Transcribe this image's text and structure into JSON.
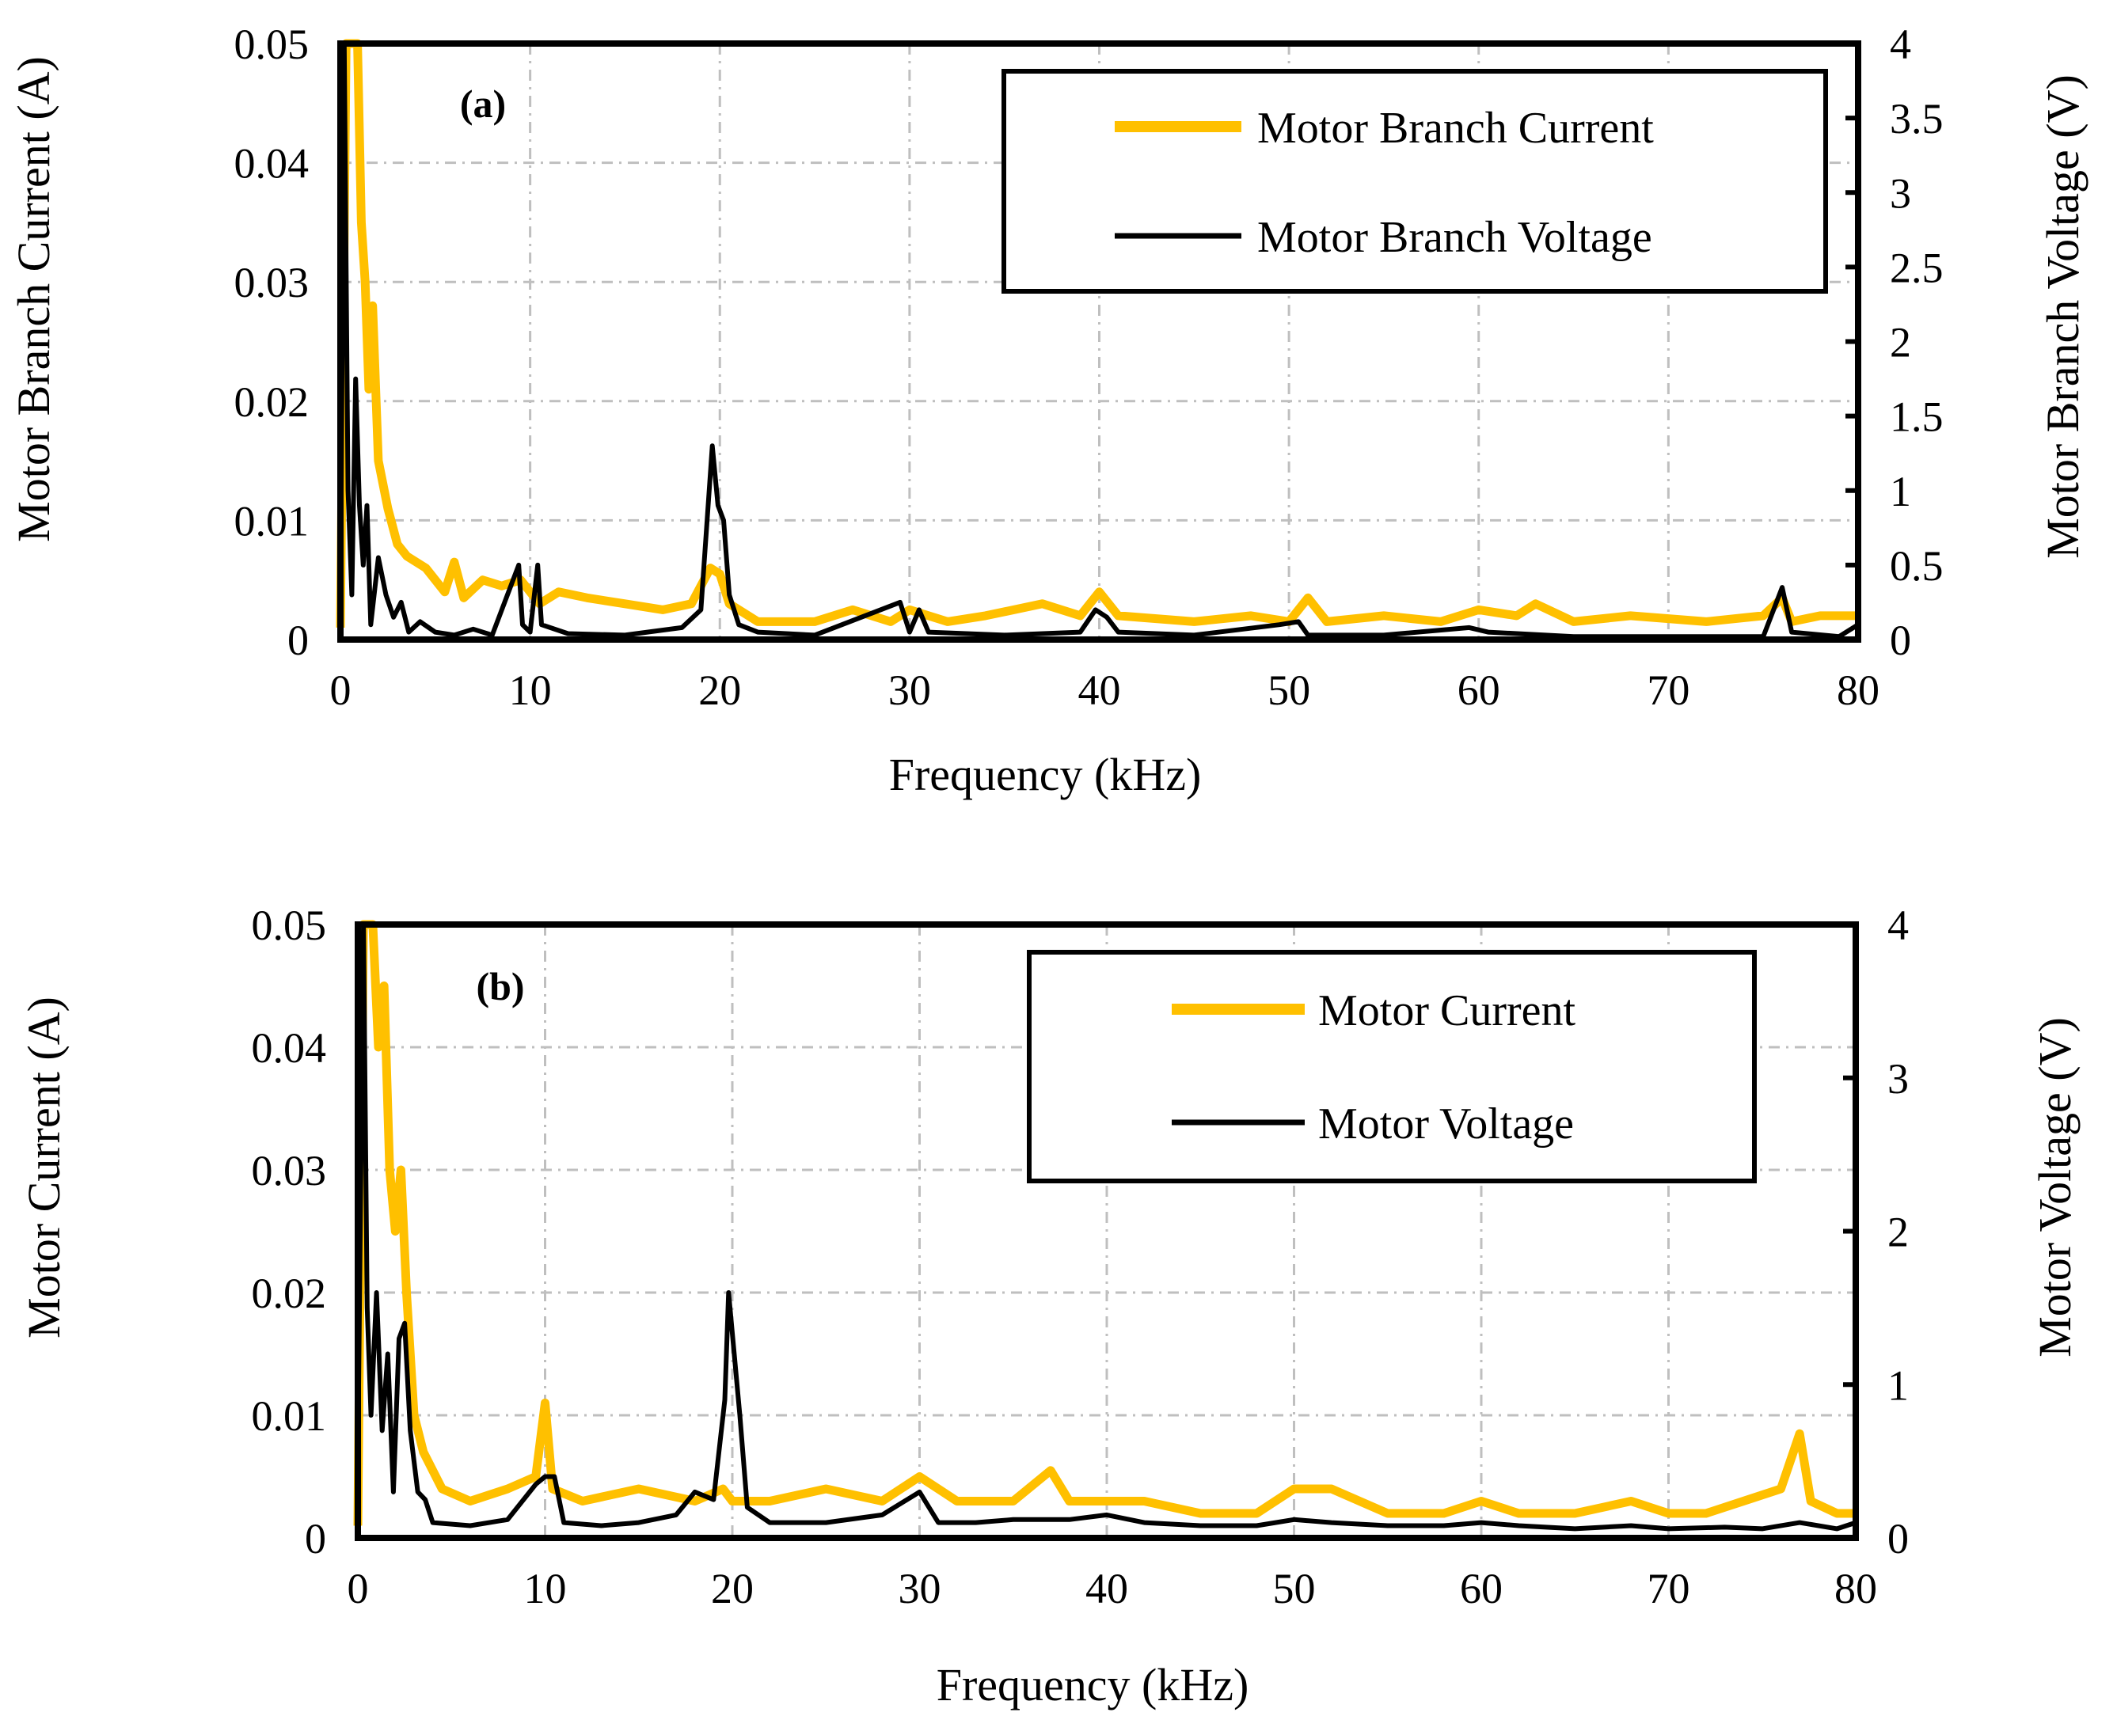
{
  "chart_data": [
    {
      "id": "a",
      "type": "line",
      "panel_label": "(a)",
      "xlabel": "Frequency (kHz)",
      "ylabel": "Motor Branch Current (A)",
      "y2label": "Motor Branch Voltage (V)",
      "xlim": [
        0,
        80
      ],
      "ylim": [
        0,
        0.05
      ],
      "y2lim": [
        0,
        4
      ],
      "xticks": [
        "0",
        "10",
        "20",
        "30",
        "40",
        "50",
        "60",
        "70",
        "80"
      ],
      "yticks": [
        "0",
        "0.01",
        "0.02",
        "0.03",
        "0.04",
        "0.05"
      ],
      "y2ticks": [
        "0",
        "0.5",
        "1",
        "1.5",
        "2",
        "2.5",
        "3",
        "3.5",
        "4"
      ],
      "legend": {
        "placement": "top-right",
        "entries": [
          "Motor Branch Current",
          "Motor Branch Voltage"
        ]
      },
      "series": [
        {
          "name": "Motor Branch Current",
          "axis": "left",
          "color": "#ffc000",
          "points": [
            [
              0,
              0.001
            ],
            [
              0.3,
              0.05
            ],
            [
              0.9,
              0.05
            ],
            [
              1.1,
              0.035
            ],
            [
              1.3,
              0.03
            ],
            [
              1.5,
              0.021
            ],
            [
              1.7,
              0.028
            ],
            [
              2.0,
              0.015
            ],
            [
              2.5,
              0.011
            ],
            [
              3.0,
              0.008
            ],
            [
              3.5,
              0.007
            ],
            [
              4.5,
              0.006
            ],
            [
              5.5,
              0.004
            ],
            [
              6.0,
              0.0065
            ],
            [
              6.5,
              0.0035
            ],
            [
              7.5,
              0.005
            ],
            [
              8.5,
              0.0045
            ],
            [
              9.5,
              0.005
            ],
            [
              10.5,
              0.003
            ],
            [
              11.5,
              0.004
            ],
            [
              13,
              0.0035
            ],
            [
              15,
              0.003
            ],
            [
              17,
              0.0025
            ],
            [
              18.5,
              0.003
            ],
            [
              19.5,
              0.006
            ],
            [
              20,
              0.0055
            ],
            [
              20.5,
              0.003
            ],
            [
              22,
              0.0015
            ],
            [
              25,
              0.0015
            ],
            [
              27,
              0.0025
            ],
            [
              29,
              0.0015
            ],
            [
              30,
              0.0025
            ],
            [
              32,
              0.0015
            ],
            [
              34,
              0.002
            ],
            [
              37,
              0.003
            ],
            [
              39,
              0.002
            ],
            [
              40,
              0.004
            ],
            [
              41,
              0.002
            ],
            [
              45,
              0.0015
            ],
            [
              48,
              0.002
            ],
            [
              50,
              0.0015
            ],
            [
              51,
              0.0035
            ],
            [
              52,
              0.0015
            ],
            [
              55,
              0.002
            ],
            [
              58,
              0.0015
            ],
            [
              60,
              0.0025
            ],
            [
              62,
              0.002
            ],
            [
              63,
              0.003
            ],
            [
              65,
              0.0015
            ],
            [
              68,
              0.002
            ],
            [
              72,
              0.0015
            ],
            [
              75,
              0.002
            ],
            [
              76,
              0.0035
            ],
            [
              76.5,
              0.0015
            ],
            [
              78,
              0.002
            ],
            [
              80,
              0.002
            ]
          ]
        },
        {
          "name": "Motor Branch Voltage",
          "axis": "right",
          "color": "#000000",
          "points": [
            [
              0,
              0.2
            ],
            [
              0.2,
              4.0
            ],
            [
              0.4,
              1.0
            ],
            [
              0.6,
              0.3
            ],
            [
              0.8,
              1.75
            ],
            [
              1.0,
              0.9
            ],
            [
              1.2,
              0.5
            ],
            [
              1.4,
              0.9
            ],
            [
              1.6,
              0.1
            ],
            [
              2.0,
              0.55
            ],
            [
              2.4,
              0.3
            ],
            [
              2.8,
              0.15
            ],
            [
              3.2,
              0.25
            ],
            [
              3.6,
              0.05
            ],
            [
              4.2,
              0.12
            ],
            [
              5,
              0.05
            ],
            [
              6,
              0.03
            ],
            [
              7,
              0.07
            ],
            [
              8,
              0.03
            ],
            [
              9.4,
              0.5
            ],
            [
              9.6,
              0.1
            ],
            [
              10,
              0.05
            ],
            [
              10.4,
              0.5
            ],
            [
              10.6,
              0.1
            ],
            [
              12,
              0.04
            ],
            [
              15,
              0.03
            ],
            [
              18,
              0.08
            ],
            [
              19,
              0.2
            ],
            [
              19.6,
              1.3
            ],
            [
              19.9,
              0.9
            ],
            [
              20.2,
              0.8
            ],
            [
              20.5,
              0.3
            ],
            [
              21,
              0.1
            ],
            [
              22,
              0.05
            ],
            [
              25,
              0.03
            ],
            [
              29.5,
              0.25
            ],
            [
              30,
              0.05
            ],
            [
              30.5,
              0.2
            ],
            [
              31,
              0.05
            ],
            [
              35,
              0.03
            ],
            [
              39,
              0.05
            ],
            [
              39.8,
              0.2
            ],
            [
              40.4,
              0.15
            ],
            [
              41,
              0.05
            ],
            [
              45,
              0.03
            ],
            [
              49.5,
              0.1
            ],
            [
              50.5,
              0.12
            ],
            [
              51,
              0.03
            ],
            [
              55,
              0.03
            ],
            [
              59.5,
              0.08
            ],
            [
              60.5,
              0.05
            ],
            [
              65,
              0.02
            ],
            [
              70,
              0.02
            ],
            [
              75,
              0.02
            ],
            [
              76,
              0.35
            ],
            [
              76.5,
              0.05
            ],
            [
              79,
              0.02
            ],
            [
              80,
              0.1
            ]
          ]
        }
      ]
    },
    {
      "id": "b",
      "type": "line",
      "panel_label": "(b)",
      "xlabel": "Frequency (kHz)",
      "ylabel": "Motor  Current (A)",
      "y2label": "Motor Voltage (V)",
      "xlim": [
        0,
        80
      ],
      "ylim": [
        0,
        0.05
      ],
      "y2lim": [
        0,
        4
      ],
      "xticks": [
        "0",
        "10",
        "20",
        "30",
        "40",
        "50",
        "60",
        "70",
        "80"
      ],
      "yticks": [
        "0",
        "0.01",
        "0.02",
        "0.03",
        "0.04",
        "0.05"
      ],
      "y2ticks": [
        "0",
        "1",
        "2",
        "3",
        "4"
      ],
      "legend": {
        "placement": "top-right",
        "entries": [
          "Motor Current",
          "Motor Voltage"
        ]
      },
      "series": [
        {
          "name": "Motor Current",
          "axis": "left",
          "color": "#ffc000",
          "points": [
            [
              0,
              0.001
            ],
            [
              0.3,
              0.05
            ],
            [
              0.8,
              0.05
            ],
            [
              1.1,
              0.04
            ],
            [
              1.4,
              0.045
            ],
            [
              1.7,
              0.03
            ],
            [
              2.0,
              0.025
            ],
            [
              2.3,
              0.03
            ],
            [
              2.6,
              0.02
            ],
            [
              3.0,
              0.01
            ],
            [
              3.5,
              0.007
            ],
            [
              4.5,
              0.004
            ],
            [
              6,
              0.003
            ],
            [
              8,
              0.004
            ],
            [
              9.5,
              0.005
            ],
            [
              10,
              0.011
            ],
            [
              10.4,
              0.004
            ],
            [
              12,
              0.003
            ],
            [
              15,
              0.004
            ],
            [
              18,
              0.003
            ],
            [
              19.5,
              0.004
            ],
            [
              20,
              0.003
            ],
            [
              22,
              0.003
            ],
            [
              25,
              0.004
            ],
            [
              28,
              0.003
            ],
            [
              30,
              0.005
            ],
            [
              32,
              0.003
            ],
            [
              35,
              0.003
            ],
            [
              37,
              0.0055
            ],
            [
              38,
              0.003
            ],
            [
              40,
              0.003
            ],
            [
              42,
              0.003
            ],
            [
              45,
              0.002
            ],
            [
              48,
              0.002
            ],
            [
              50,
              0.004
            ],
            [
              52,
              0.004
            ],
            [
              55,
              0.002
            ],
            [
              58,
              0.002
            ],
            [
              60,
              0.003
            ],
            [
              62,
              0.002
            ],
            [
              65,
              0.002
            ],
            [
              68,
              0.003
            ],
            [
              70,
              0.002
            ],
            [
              72,
              0.002
            ],
            [
              74,
              0.003
            ],
            [
              76,
              0.004
            ],
            [
              77,
              0.0085
            ],
            [
              77.6,
              0.003
            ],
            [
              79,
              0.002
            ],
            [
              80,
              0.002
            ]
          ]
        },
        {
          "name": "Motor Voltage",
          "axis": "right",
          "color": "#000000",
          "points": [
            [
              0,
              0.5
            ],
            [
              0.3,
              4.0
            ],
            [
              0.5,
              1.5
            ],
            [
              0.7,
              0.8
            ],
            [
              1.0,
              1.6
            ],
            [
              1.3,
              0.7
            ],
            [
              1.6,
              1.2
            ],
            [
              1.9,
              0.3
            ],
            [
              2.2,
              1.3
            ],
            [
              2.5,
              1.4
            ],
            [
              2.8,
              0.7
            ],
            [
              3.2,
              0.3
            ],
            [
              3.6,
              0.25
            ],
            [
              4,
              0.1
            ],
            [
              6,
              0.08
            ],
            [
              8,
              0.12
            ],
            [
              9.5,
              0.35
            ],
            [
              10,
              0.4
            ],
            [
              10.5,
              0.4
            ],
            [
              11,
              0.1
            ],
            [
              13,
              0.08
            ],
            [
              15,
              0.1
            ],
            [
              17,
              0.15
            ],
            [
              18,
              0.3
            ],
            [
              19,
              0.25
            ],
            [
              19.6,
              0.9
            ],
            [
              19.8,
              1.6
            ],
            [
              20.1,
              1.2
            ],
            [
              20.4,
              0.8
            ],
            [
              20.8,
              0.2
            ],
            [
              22,
              0.1
            ],
            [
              25,
              0.1
            ],
            [
              28,
              0.15
            ],
            [
              30,
              0.3
            ],
            [
              31,
              0.1
            ],
            [
              33,
              0.1
            ],
            [
              35,
              0.12
            ],
            [
              38,
              0.12
            ],
            [
              40,
              0.15
            ],
            [
              42,
              0.1
            ],
            [
              45,
              0.08
            ],
            [
              48,
              0.08
            ],
            [
              50,
              0.12
            ],
            [
              52,
              0.1
            ],
            [
              55,
              0.08
            ],
            [
              58,
              0.08
            ],
            [
              60,
              0.1
            ],
            [
              62,
              0.08
            ],
            [
              65,
              0.06
            ],
            [
              68,
              0.08
            ],
            [
              70,
              0.06
            ],
            [
              73,
              0.07
            ],
            [
              75,
              0.06
            ],
            [
              77,
              0.1
            ],
            [
              79,
              0.06
            ],
            [
              80,
              0.1
            ]
          ]
        }
      ]
    }
  ]
}
